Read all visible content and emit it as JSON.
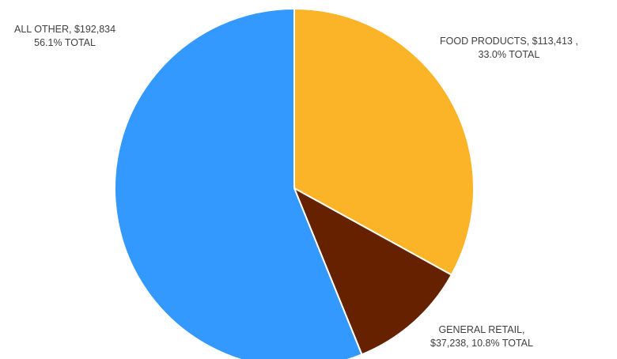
{
  "chart_data": {
    "type": "pie",
    "title": "",
    "slices": [
      {
        "name": "FOOD PRODUCTS",
        "value": 113413,
        "percent": 33.0,
        "color": "#FBB327",
        "label_line1": "FOOD PRODUCTS, $113,413 ,",
        "label_line2": "33.0% TOTAL"
      },
      {
        "name": "GENERAL RETAIL",
        "value": 37238,
        "percent": 10.8,
        "color": "#662200",
        "label_line1": "GENERAL RETAIL,",
        "label_line2": "$37,238, 10.8% TOTAL"
      },
      {
        "name": "ALL OTHER",
        "value": 192834,
        "percent": 56.1,
        "color": "#3399FF",
        "label_line1": "ALL OTHER, $192,834",
        "label_line2": "56.1% TOTAL"
      }
    ],
    "start_angle": "12 o'clock",
    "direction": "clockwise",
    "slice_border_color": "#FFFFFF",
    "legend": "none",
    "data_labels": "outside"
  }
}
